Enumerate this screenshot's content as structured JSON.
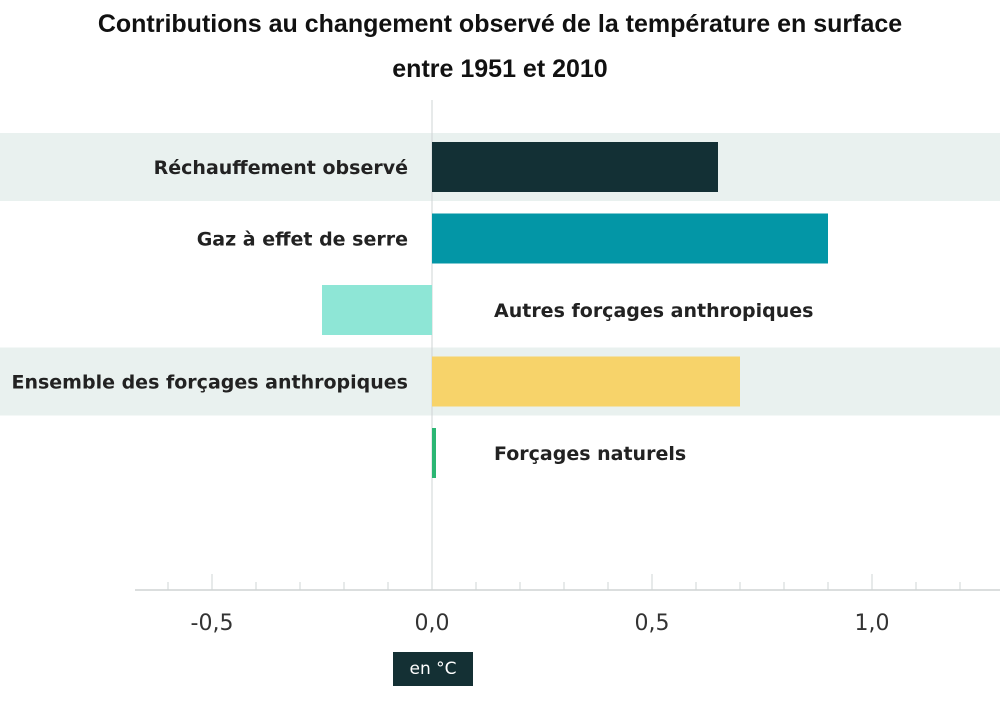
{
  "chart_data": {
    "type": "bar",
    "orientation": "horizontal",
    "title_line1": "Contributions au changement observé de la température en surface",
    "title_line2": "entre 1951 et 2010",
    "categories": [
      "Réchauffement observé",
      "Gaz à effet de serre",
      "Autres forçages anthropiques",
      "Ensemble des forçages anthropiques",
      "Forçages naturels"
    ],
    "values": [
      0.65,
      0.9,
      -0.25,
      0.7,
      0.005
    ],
    "colors": [
      "#133035",
      "#0396a6",
      "#8ee6d6",
      "#f7d36a",
      "#2bb673"
    ],
    "shaded_rows": [
      0,
      3
    ],
    "xlim": [
      -0.68,
      1.28
    ],
    "major_ticks": [
      -0.5,
      0.0,
      0.5,
      1.0
    ],
    "tick_labels": [
      "-0,5",
      "0,0",
      "0,5",
      "1,0"
    ],
    "minor_tick_step": 0.1,
    "xlabel": "en °C",
    "grid": false
  }
}
